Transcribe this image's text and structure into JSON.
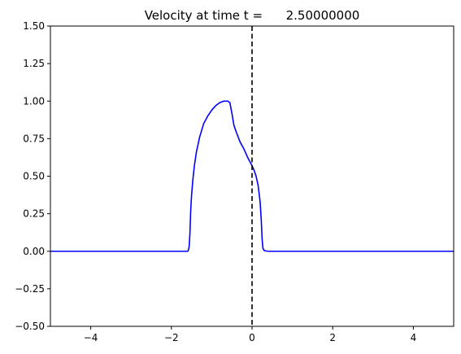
{
  "chart_data": {
    "type": "line",
    "title": "Velocity at time t =      2.50000000",
    "xlabel": "",
    "ylabel": "",
    "xlim": [
      -5,
      5
    ],
    "ylim": [
      -0.5,
      1.5
    ],
    "xticks": [
      -4,
      -2,
      0,
      2,
      4
    ],
    "xtick_labels": [
      "−4",
      "−2",
      "0",
      "2",
      "4"
    ],
    "yticks": [
      -0.5,
      -0.25,
      0.0,
      0.25,
      0.5,
      0.75,
      1.0,
      1.25,
      1.5
    ],
    "ytick_labels": [
      "−0.50",
      "−0.25",
      "0.00",
      "0.25",
      "0.50",
      "0.75",
      "1.00",
      "1.25",
      "1.50"
    ],
    "grid": false,
    "vertical_line": {
      "x": 0,
      "style": "dashed",
      "color": "#000000"
    },
    "series": [
      {
        "color": "#0000ff",
        "x": [
          -5,
          -1.6,
          -1.58,
          -1.56,
          -1.54,
          -1.52,
          -1.5,
          -1.47,
          -1.43,
          -1.38,
          -1.3,
          -1.2,
          -1.1,
          -1.0,
          -0.9,
          -0.8,
          -0.7,
          -0.6,
          -0.55,
          -0.5,
          -0.45,
          -0.4,
          -0.3,
          -0.2,
          -0.1,
          0.0,
          0.05,
          0.1,
          0.15,
          0.2,
          0.23,
          0.25,
          0.27,
          0.3,
          0.35,
          0.4,
          5
        ],
        "y": [
          0,
          0,
          0.005,
          0.03,
          0.12,
          0.28,
          0.37,
          0.47,
          0.57,
          0.66,
          0.76,
          0.85,
          0.9,
          0.94,
          0.97,
          0.99,
          1.0,
          1.0,
          0.99,
          0.92,
          0.84,
          0.8,
          0.73,
          0.68,
          0.62,
          0.57,
          0.54,
          0.5,
          0.44,
          0.33,
          0.2,
          0.08,
          0.02,
          0.005,
          0.002,
          0,
          0
        ]
      }
    ]
  }
}
